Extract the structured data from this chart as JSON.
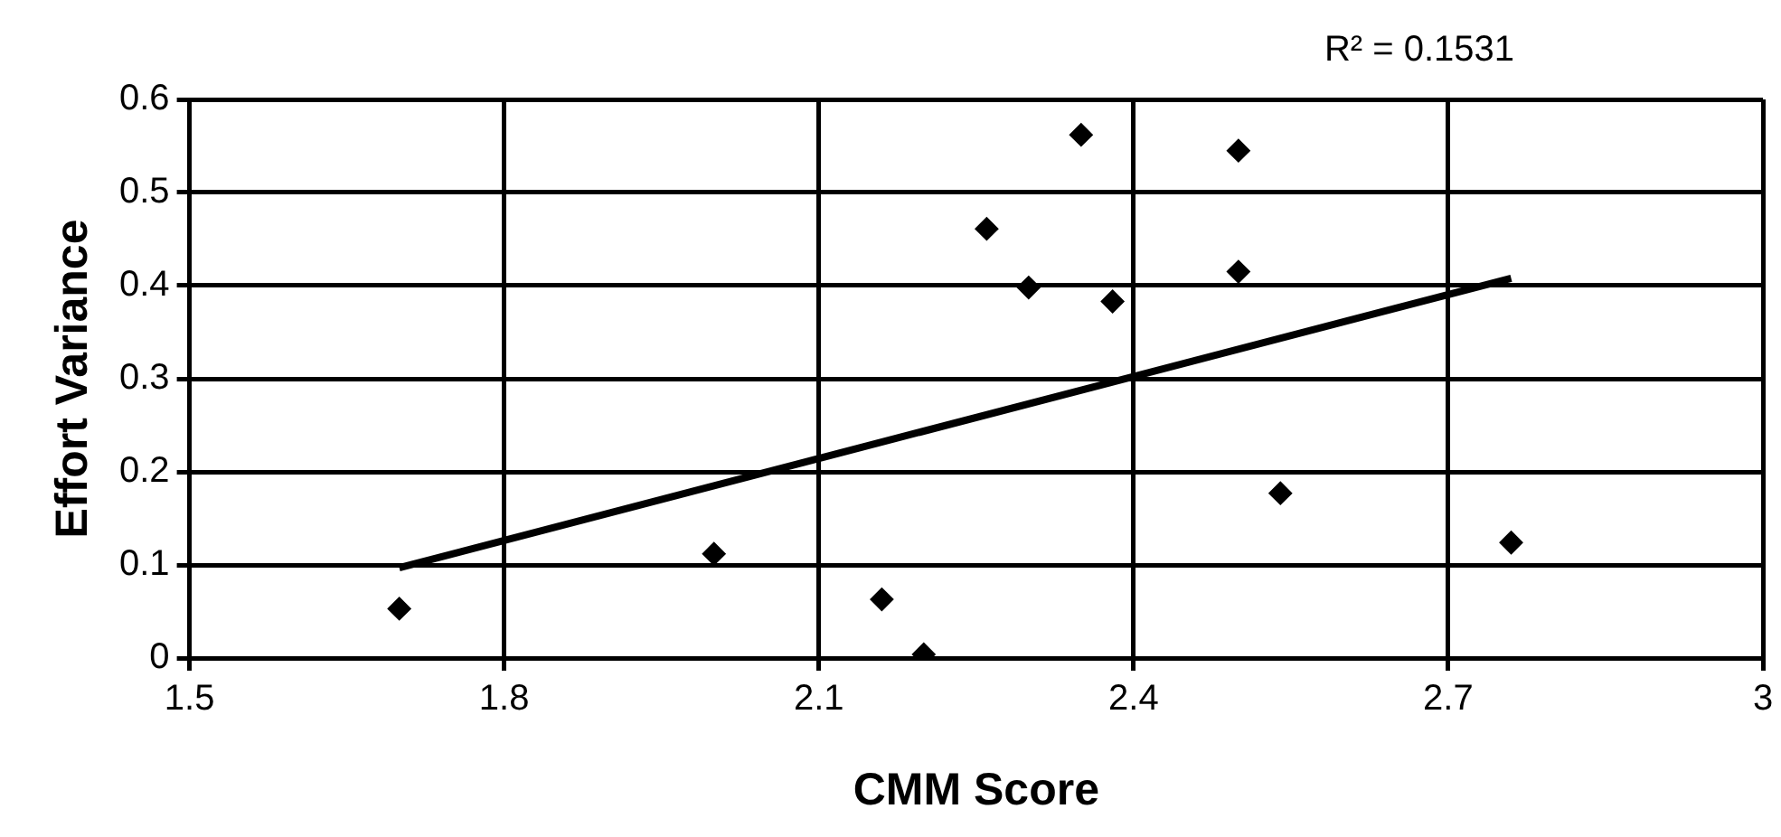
{
  "chart_data": {
    "type": "scatter",
    "xlabel": "CMM Score",
    "ylabel": "Effort Variance",
    "annotations": [
      "R² = 0.1531"
    ],
    "series": [
      {
        "color": "#000000",
        "marker": "diamond",
        "x": [
          1.7,
          2.0,
          2.16,
          2.2,
          2.26,
          2.3,
          2.35,
          2.38,
          2.5,
          2.5,
          2.54,
          2.76
        ],
        "values": [
          0.053,
          0.112,
          0.063,
          0.004,
          0.461,
          0.398,
          0.562,
          0.383,
          0.545,
          0.415,
          0.177,
          0.124
        ]
      },
      {
        "type": "line",
        "color": "#000000",
        "marker": "none",
        "x": [
          1.7,
          2.76
        ],
        "values": [
          0.097,
          0.408
        ]
      }
    ],
    "xlim": [
      1.5,
      3
    ],
    "xticks": [
      1.5,
      1.8,
      2.1,
      2.4,
      2.7,
      3
    ],
    "ylim": [
      0,
      0.6
    ],
    "yticks": [
      0,
      0.1,
      0.2,
      0.3,
      0.4,
      0.5,
      0.6
    ],
    "grid": true,
    "legend": false
  }
}
